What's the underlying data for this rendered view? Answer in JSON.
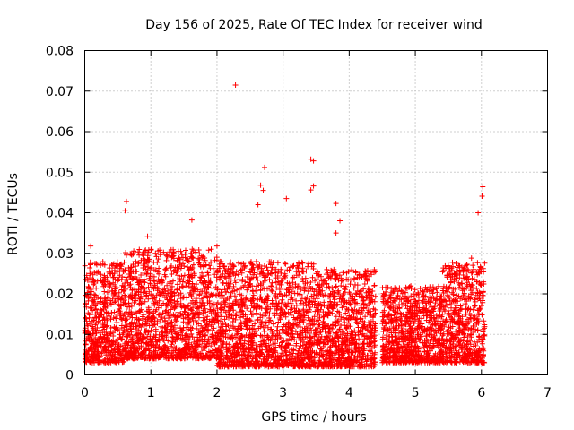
{
  "chart_data": {
    "type": "scatter",
    "title": "Day 156 of 2025, Rate Of TEC Index for receiver wind",
    "xlabel": "GPS time / hours",
    "ylabel": "ROTI / TECUs",
    "xlim": [
      0,
      7
    ],
    "ylim": [
      0,
      0.08
    ],
    "x_ticks": [
      "0",
      "1",
      "2",
      "3",
      "4",
      "5",
      "6",
      "7"
    ],
    "y_ticks": [
      "0",
      "0.01",
      "0.02",
      "0.03",
      "0.04",
      "0.05",
      "0.06",
      "0.07",
      "0.08"
    ],
    "grid": true,
    "marker": "+",
    "series_color": "#ff0000",
    "series": [
      {
        "name": "ROTI",
        "notable_points": [
          {
            "x": 2.28,
            "y": 0.0715
          },
          {
            "x": 3.42,
            "y": 0.0532
          },
          {
            "x": 3.46,
            "y": 0.0528
          },
          {
            "x": 2.72,
            "y": 0.0512
          },
          {
            "x": 2.66,
            "y": 0.0468
          },
          {
            "x": 2.7,
            "y": 0.0455
          },
          {
            "x": 3.42,
            "y": 0.0456
          },
          {
            "x": 3.46,
            "y": 0.0466
          },
          {
            "x": 0.63,
            "y": 0.0428
          },
          {
            "x": 0.61,
            "y": 0.0405
          },
          {
            "x": 3.05,
            "y": 0.0435
          },
          {
            "x": 3.8,
            "y": 0.0423
          },
          {
            "x": 6.02,
            "y": 0.0464
          },
          {
            "x": 6.01,
            "y": 0.0441
          },
          {
            "x": 5.95,
            "y": 0.04
          },
          {
            "x": 1.62,
            "y": 0.0382
          },
          {
            "x": 2.62,
            "y": 0.042
          },
          {
            "x": 0.95,
            "y": 0.0342
          },
          {
            "x": 0.09,
            "y": 0.0318
          },
          {
            "x": 2.0,
            "y": 0.0318
          },
          {
            "x": 3.8,
            "y": 0.035
          },
          {
            "x": 3.86,
            "y": 0.038
          },
          {
            "x": 5.85,
            "y": 0.0288
          }
        ],
        "segments": [
          {
            "x_start": 0.0,
            "x_end": 0.6,
            "y_low": 0.003,
            "y_high": 0.028
          },
          {
            "x_start": 0.6,
            "x_end": 2.0,
            "y_low": 0.004,
            "y_high": 0.031
          },
          {
            "x_start": 2.0,
            "x_end": 3.5,
            "y_low": 0.002,
            "y_high": 0.028
          },
          {
            "x_start": 3.5,
            "x_end": 4.4,
            "y_low": 0.002,
            "y_high": 0.026
          },
          {
            "x_start": 4.5,
            "x_end": 5.4,
            "y_low": 0.003,
            "y_high": 0.022
          },
          {
            "x_start": 5.4,
            "x_end": 6.05,
            "y_low": 0.003,
            "y_high": 0.028
          }
        ]
      }
    ]
  }
}
